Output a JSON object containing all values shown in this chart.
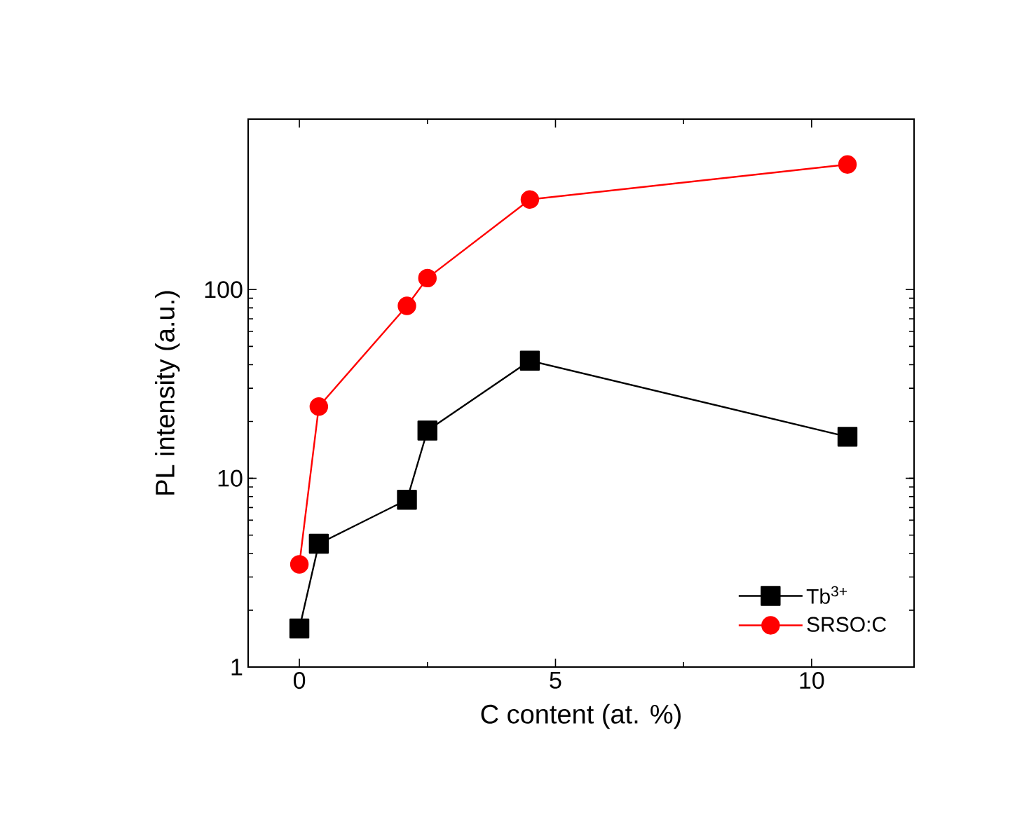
{
  "chart_data": {
    "type": "line",
    "xlabel": "C content (at. %)",
    "ylabel": "PL intensity (a.u.)",
    "log": "y",
    "xlim": [
      -1,
      12
    ],
    "ylim": [
      1,
      800
    ],
    "xticks": [
      0,
      5,
      10
    ],
    "yticks": [
      1,
      10,
      100
    ],
    "legend": "bottom right",
    "line_style": "solid",
    "series": [
      {
        "name": "Tb$^{3+}$",
        "color": "#000000",
        "marker": "square",
        "x": [
          0,
          0.38,
          2.1,
          2.5,
          4.5,
          10.7
        ],
        "values": [
          1.6,
          4.5,
          7.7,
          17.9,
          42,
          16.6
        ]
      },
      {
        "name": "SRSO:C",
        "color": "#ff0000",
        "marker": "circle",
        "x": [
          0,
          0.38,
          2.1,
          2.5,
          4.5,
          10.7
        ],
        "values": [
          3.5,
          24,
          82,
          115,
          300,
          460
        ]
      }
    ]
  }
}
